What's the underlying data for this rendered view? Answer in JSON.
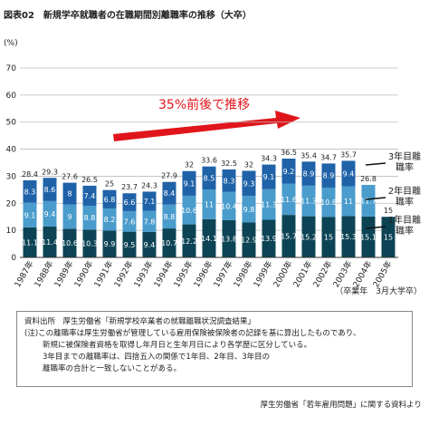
{
  "chart_data": {
    "type": "bar",
    "stacked": true,
    "title": "図表02　新規学卒就職者の在職期間別離職率の推移（大卒）",
    "y_unit": "(%)",
    "annotation": "35%前後で推移",
    "x_note": "（卒業年　3月大学卒）",
    "categories": [
      "1987年",
      "1988年",
      "1989年",
      "1990年",
      "1991年",
      "1992年",
      "1993年",
      "1994年",
      "1995年",
      "1996年",
      "1997年",
      "1998年",
      "1999年",
      "2000年",
      "2001年",
      "2002年",
      "2003年",
      "2004年",
      "2005年"
    ],
    "series": [
      {
        "name": "1年目離職率",
        "color": "#0d4455",
        "values": [
          11.1,
          11.4,
          10.6,
          10.3,
          9.9,
          9.5,
          9.4,
          10.7,
          12.2,
          14.1,
          13.8,
          12.9,
          13.9,
          15.7,
          15.2,
          15.0,
          15.3,
          15.1,
          15.0
        ]
      },
      {
        "name": "2年目離職率",
        "color": "#4a9ccc",
        "values": [
          9.1,
          9.4,
          9.0,
          8.8,
          8.2,
          7.6,
          7.8,
          8.8,
          10.6,
          11.0,
          10.4,
          9.8,
          11.3,
          11.6,
          11.3,
          10.8,
          11.0,
          11.7,
          null
        ]
      },
      {
        "name": "3年目離職率",
        "color": "#1f62a8",
        "values": [
          8.3,
          8.6,
          8.0,
          7.4,
          6.8,
          6.6,
          7.1,
          8.4,
          9.1,
          8.5,
          8.3,
          9.3,
          9.1,
          9.2,
          8.9,
          8.9,
          9.4,
          null,
          null
        ]
      }
    ],
    "totals": [
      28.4,
      29.3,
      27.6,
      26.5,
      25.0,
      23.7,
      24.3,
      27.9,
      32.0,
      33.6,
      32.5,
      32.0,
      34.3,
      36.5,
      35.4,
      34.7,
      35.7,
      26.8,
      15.0
    ],
    "ylim": [
      0,
      70
    ],
    "yticks": [
      0,
      10,
      20,
      30,
      40,
      50,
      60,
      70
    ],
    "grid": true
  },
  "source": {
    "label": "資料出所",
    "text": "厚生労働省「新規学校卒業者の就職離職状況調査結果」"
  },
  "note": {
    "label": "(注)",
    "lines": [
      "この離職率は厚生労働省が管理している雇用保険被保険者の記録を基に算出したものであり、",
      "新規に被保険者資格を取得し年月日と生年月日により各学歴に区分している。",
      "3年目までの離職率は、四捨五入の関係で1年目、2年目、3年目の",
      "離職率の合計と一致しないことがある。"
    ]
  },
  "footer": "厚生労働省「若年雇用問題」に関する資料より"
}
